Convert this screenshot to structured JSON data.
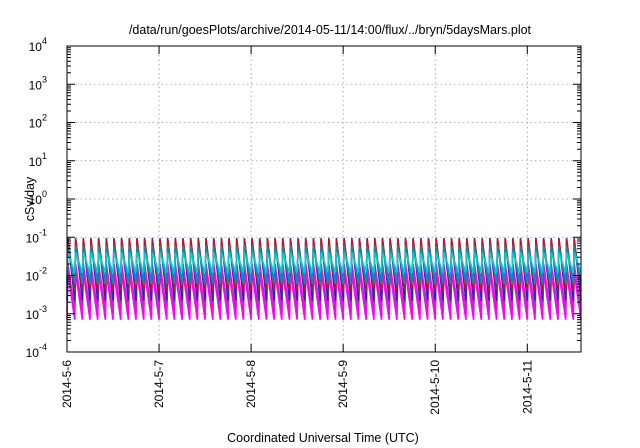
{
  "chart_data": {
    "type": "line",
    "title": "/data/run/goesPlots/archive/2014-05-11/14:00/flux/../bryn/5daysMars.plot",
    "xlabel": "Coordinated Universal Time (UTC)",
    "ylabel": "cSv/day",
    "x_tick_labels": [
      "2014-5-6",
      "2014-5-7",
      "2014-5-8",
      "2014-5-9",
      "2014-5-10",
      "2014-5-11"
    ],
    "x_range": [
      "2014-05-06 00:00",
      "2014-05-11 14:00"
    ],
    "y_tick_labels": [
      {
        "base": "10",
        "exp": "-4"
      },
      {
        "base": "10",
        "exp": "-3"
      },
      {
        "base": "10",
        "exp": "-2"
      },
      {
        "base": "10",
        "exp": "-1"
      },
      {
        "base": "10",
        "exp": "0"
      },
      {
        "base": "10",
        "exp": "1"
      },
      {
        "base": "10",
        "exp": "2"
      },
      {
        "base": "10",
        "exp": "3"
      },
      {
        "base": "10",
        "exp": "4"
      }
    ],
    "ylim": [
      0.0001,
      10000
    ],
    "y_scale": "log",
    "grid": true,
    "legend": "none",
    "sawtooth_period_hours": 2,
    "series": [
      {
        "color": "#ff00ff",
        "peak": 0.012,
        "trough": 0.0007
      },
      {
        "color": "#cc22cc",
        "peak": 0.02,
        "trough": 0.0012
      },
      {
        "color": "#1a33aa",
        "peak": 0.095,
        "trough": 0.0022
      },
      {
        "color": "#c8102e",
        "peak": 0.09,
        "trough": 0.004
      },
      {
        "color": "#2c8c6c",
        "peak": 0.06,
        "trough": 0.006
      },
      {
        "color": "#0088dd",
        "peak": 0.05,
        "trough": 0.007
      },
      {
        "color": "#10c8c8",
        "peak": 0.04,
        "trough": 0.012
      }
    ]
  }
}
